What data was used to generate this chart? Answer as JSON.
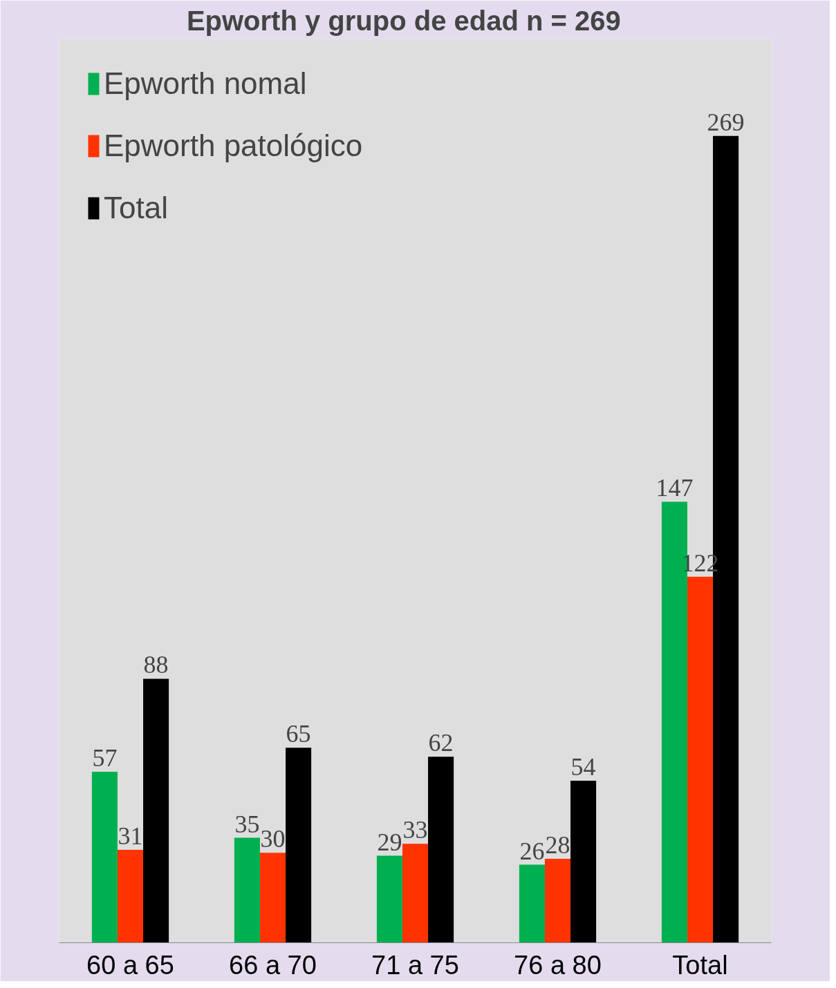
{
  "chart_data": {
    "type": "bar",
    "title": "Epworth y grupo de edad    n = 269",
    "categories": [
      "60 a 65",
      "66 a 70",
      "71 a 75",
      "76 a 80",
      "Total"
    ],
    "series": [
      {
        "name": "Epworth nomal",
        "color": "#00b050",
        "values": [
          57,
          35,
          29,
          26,
          147
        ]
      },
      {
        "name": "Epworth patológico",
        "color": "#ff3300",
        "values": [
          31,
          30,
          33,
          28,
          122
        ]
      },
      {
        "name": "Total",
        "color": "#000000",
        "values": [
          88,
          65,
          62,
          54,
          269
        ]
      }
    ],
    "data_labels": true,
    "legend": "top left",
    "grid": false
  }
}
